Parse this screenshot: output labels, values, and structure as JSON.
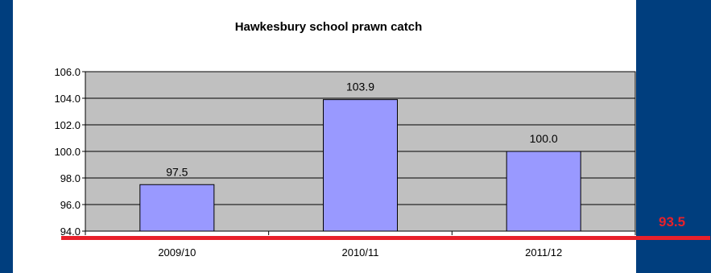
{
  "chart_data": {
    "type": "bar",
    "title": "Hawkesbury school prawn catch",
    "categories": [
      "2009/10",
      "2010/11",
      "2011/12"
    ],
    "values": [
      97.5,
      103.9,
      100.0
    ],
    "value_labels": [
      "97.5",
      "103.9",
      "100.0"
    ],
    "ylim": [
      94.0,
      106.0
    ],
    "yticks": [
      94.0,
      96.0,
      98.0,
      100.0,
      102.0,
      104.0,
      106.0
    ],
    "ytick_labels": [
      "94.0",
      "96.0",
      "98.0",
      "100.0",
      "102.0",
      "104.0",
      "106.0"
    ],
    "grid": true,
    "xlabel": "",
    "ylabel": "",
    "colors": {
      "bar_fill": "#9999ff",
      "plot_bg": "#c0c0c0",
      "background": "#003e7e",
      "reference_line": "#e8202a"
    },
    "reference_line": {
      "value": 93.5,
      "label": "93.5"
    }
  }
}
